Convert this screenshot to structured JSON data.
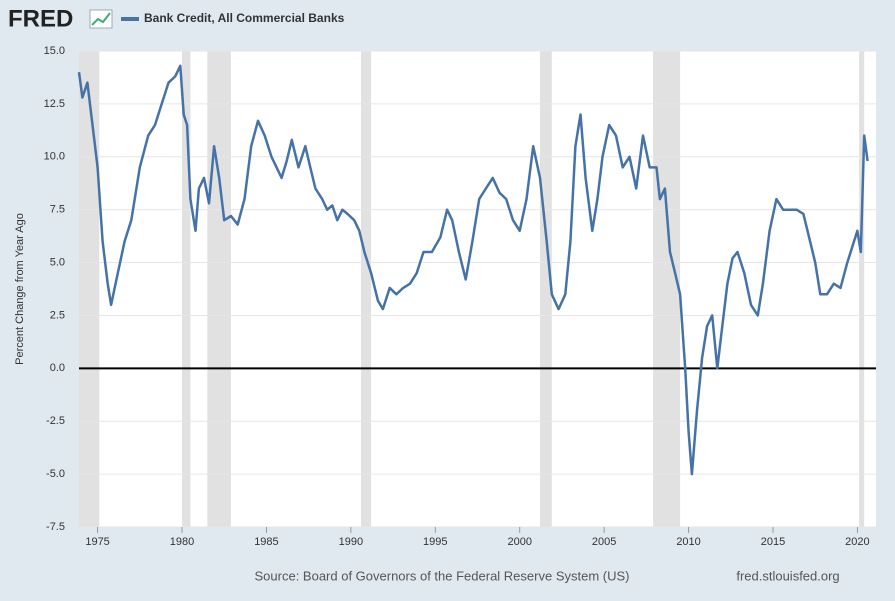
{
  "brand": "FRED",
  "chart_data": {
    "type": "line",
    "y_label": "Percent Change from Year Ago",
    "source": "Source: Board of Governors of the Federal Reserve System (US)",
    "site": "fred.stlouisfed.org",
    "xlim": [
      1973.9,
      2021.1
    ],
    "xticks": [
      1975,
      1980,
      1985,
      1990,
      1995,
      2000,
      2005,
      2010,
      2015,
      2020
    ],
    "ylim": [
      -7.5,
      15
    ],
    "yticks": [
      {
        "value": 15,
        "label": "15.0"
      },
      12.5,
      {
        "value": 10,
        "label": "10.0"
      },
      7.5,
      {
        "value": 5,
        "label": "5.0"
      },
      2.5,
      {
        "value": 0,
        "label": "0.0"
      },
      -2.5,
      {
        "value": -5,
        "label": "-5.0"
      },
      -7.5
    ],
    "grid": true,
    "recessions": [
      [
        1973.9,
        1975.1
      ],
      [
        1980.0,
        1980.5
      ],
      [
        1981.5,
        1982.9
      ],
      [
        1990.6,
        1991.2
      ],
      [
        2001.2,
        2001.9
      ],
      [
        2007.9,
        2009.5
      ],
      [
        2020.1,
        2020.4
      ]
    ],
    "recession_color": "#e1e1e1",
    "x": [
      1973.9,
      1974.1,
      1974.4,
      1974.7,
      1975.0,
      1975.3,
      1975.6,
      1975.8,
      1976.2,
      1976.6,
      1977.0,
      1977.5,
      1978.0,
      1978.4,
      1978.8,
      1979.2,
      1979.6,
      1979.9,
      1980.1,
      1980.3,
      1980.5,
      1980.8,
      1981.0,
      1981.3,
      1981.6,
      1981.9,
      1982.2,
      1982.5,
      1982.9,
      1983.3,
      1983.7,
      1984.1,
      1984.5,
      1984.9,
      1985.3,
      1985.6,
      1985.9,
      1986.2,
      1986.5,
      1986.9,
      1987.3,
      1987.6,
      1987.9,
      1988.3,
      1988.6,
      1988.9,
      1989.2,
      1989.5,
      1989.8,
      1990.2,
      1990.5,
      1990.8,
      1991.2,
      1991.6,
      1991.9,
      1992.3,
      1992.7,
      1993.1,
      1993.5,
      1993.9,
      1994.3,
      1994.8,
      1995.3,
      1995.7,
      1996.0,
      1996.4,
      1996.8,
      1997.2,
      1997.6,
      1998.0,
      1998.4,
      1998.8,
      1999.2,
      1999.6,
      2000.0,
      2000.4,
      2000.8,
      2001.2,
      2001.6,
      2001.9,
      2002.3,
      2002.7,
      2003.0,
      2003.3,
      2003.6,
      2003.9,
      2004.3,
      2004.6,
      2004.9,
      2005.3,
      2005.7,
      2006.1,
      2006.5,
      2006.9,
      2007.3,
      2007.7,
      2008.1,
      2008.3,
      2008.6,
      2008.9,
      2009.2,
      2009.5,
      2009.8,
      2010.0,
      2010.2,
      2010.5,
      2010.8,
      2011.1,
      2011.4,
      2011.7,
      2012.0,
      2012.3,
      2012.6,
      2012.9,
      2013.3,
      2013.7,
      2014.1,
      2014.4,
      2014.8,
      2015.2,
      2015.6,
      2016.0,
      2016.4,
      2016.8,
      2017.2,
      2017.5,
      2017.8,
      2018.2,
      2018.6,
      2019.0,
      2019.4,
      2019.8,
      2020.0,
      2020.2,
      2020.4,
      2020.6
    ],
    "series": [
      {
        "name": "Bank Credit, All Commercial Banks",
        "color": "#4572a7",
        "values": [
          14.0,
          12.8,
          13.5,
          11.5,
          9.5,
          6.0,
          4.0,
          3.0,
          4.5,
          6.0,
          7.0,
          9.5,
          11.0,
          11.5,
          12.5,
          13.5,
          13.8,
          14.3,
          12.0,
          11.5,
          8.0,
          6.5,
          8.5,
          9.0,
          7.8,
          10.5,
          9.0,
          7.0,
          7.2,
          6.8,
          8.0,
          10.5,
          11.7,
          11.0,
          10.0,
          9.5,
          9.0,
          9.8,
          10.8,
          9.5,
          10.5,
          9.5,
          8.5,
          8.0,
          7.5,
          7.7,
          7.0,
          7.5,
          7.3,
          7.0,
          6.5,
          5.5,
          4.5,
          3.2,
          2.8,
          3.8,
          3.5,
          3.8,
          4.0,
          4.5,
          5.5,
          5.5,
          6.2,
          7.5,
          7.0,
          5.5,
          4.2,
          6.0,
          8.0,
          8.5,
          9.0,
          8.3,
          8.0,
          7.0,
          6.5,
          8.0,
          10.5,
          9.0,
          6.0,
          3.5,
          2.8,
          3.5,
          6.0,
          10.5,
          12.0,
          9.0,
          6.5,
          8.0,
          10.0,
          11.5,
          11.0,
          9.5,
          10.0,
          8.5,
          11.0,
          9.5,
          9.5,
          8.0,
          8.5,
          5.5,
          4.5,
          3.5,
          0.0,
          -3.0,
          -5.0,
          -2.0,
          0.5,
          2.0,
          2.5,
          0.0,
          2.0,
          4.0,
          5.2,
          5.5,
          4.5,
          3.0,
          2.5,
          4.0,
          6.5,
          8.0,
          7.5,
          7.5,
          7.5,
          7.3,
          6.0,
          5.0,
          3.5,
          3.5,
          4.0,
          3.8,
          5.0,
          6.0,
          6.5,
          5.5,
          11.0,
          9.8
        ]
      }
    ]
  }
}
